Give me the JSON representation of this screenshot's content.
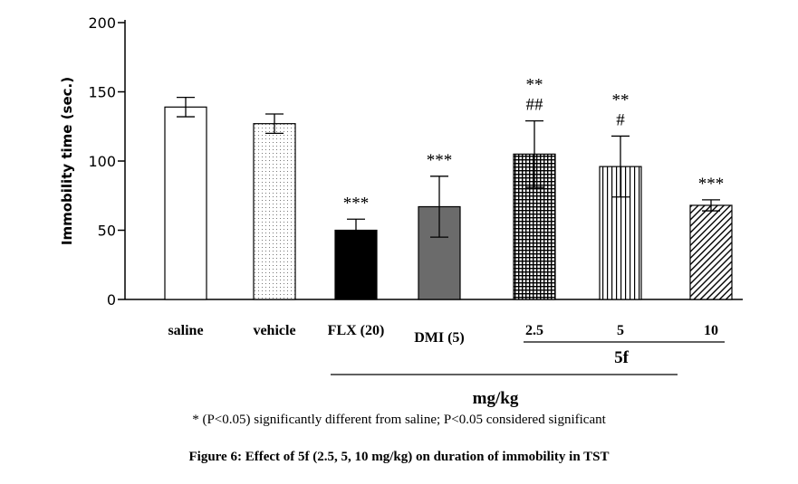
{
  "chart_data": {
    "type": "bar",
    "ylabel": "Immobility time (sec.)",
    "xlabel": "mg/kg",
    "ylim": [
      0,
      200
    ],
    "yticks": [
      0,
      50,
      100,
      150,
      200
    ],
    "categories": [
      "saline",
      "vehicle",
      "FLX (20)",
      "DMI (5)",
      "2.5",
      "5",
      "10"
    ],
    "values": [
      139,
      127,
      50,
      67,
      105,
      96,
      68
    ],
    "errors": [
      7,
      7,
      8,
      22,
      24,
      22,
      4
    ],
    "significance": [
      "",
      "",
      "***",
      "***",
      "**\n##",
      "**\n#",
      "***"
    ],
    "fills": [
      "white",
      "dotted",
      "black",
      "gray",
      "crosshatch",
      "vertical-lines",
      "diagonal-lines"
    ],
    "group_label": "5f",
    "grid": false
  },
  "colors": {
    "black": "#000000",
    "gray": "#6b6b6b",
    "white": "#ffffff"
  },
  "footnote": "* (P<0.05) significantly different from saline; P<0.05 considered significant",
  "figure_caption": "Figure 6: Effect of 5f (2.5, 5, 10 mg/kg) on duration of immobility in TST"
}
